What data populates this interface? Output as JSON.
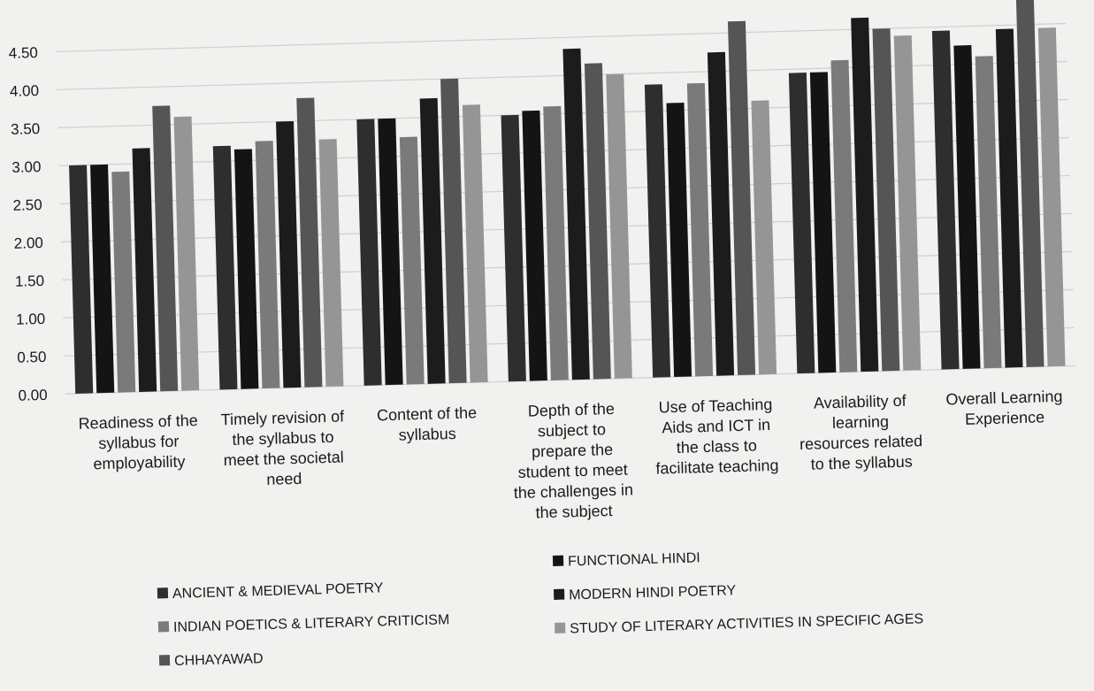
{
  "chart_data": {
    "type": "bar",
    "title": "",
    "xlabel": "",
    "ylabel": "",
    "ylim": [
      0,
      5
    ],
    "yticks": [
      "0.00",
      "0.50",
      "1.00",
      "1.50",
      "2.00",
      "2.50",
      "3.00",
      "3.50",
      "4.00",
      "4.50"
    ],
    "grid": true,
    "legend_position": "bottom",
    "categories": [
      [
        "Readiness of the",
        "syllabus for",
        "employability"
      ],
      [
        "Timely revision of",
        "the syllabus to",
        "meet the societal",
        "need"
      ],
      [
        "Content of the",
        "syllabus"
      ],
      [
        "Depth of the",
        "subject to",
        "prepare the",
        "student to meet",
        "the challenges in",
        "the subject"
      ],
      [
        "Use of Teaching",
        "Aids and ICT in",
        "the class to",
        "facilitate teaching"
      ],
      [
        "Availability of",
        "learning",
        "resources related",
        "to the syllabus"
      ],
      [
        "Overall Learning",
        "Experience"
      ]
    ],
    "series": [
      {
        "name": "ANCIENT & MEDIEVAL POETRY",
        "color": "#2e2e2e",
        "values": [
          3.0,
          3.2,
          3.5,
          3.5,
          3.85,
          3.95,
          4.45
        ]
      },
      {
        "name": "FUNCTIONAL HINDI",
        "color": "#141414",
        "values": [
          3.0,
          3.15,
          3.5,
          3.55,
          3.6,
          3.95,
          4.25
        ]
      },
      {
        "name": "INDIAN POETICS & LITERARY CRITICISM",
        "color": "#7a7a7a",
        "values": [
          2.9,
          3.25,
          3.25,
          3.6,
          3.85,
          4.1,
          4.1
        ]
      },
      {
        "name": "MODERN HINDI POETRY",
        "color": "#1c1c1c",
        "values": [
          3.2,
          3.5,
          3.75,
          4.35,
          4.25,
          4.65,
          4.45
        ]
      },
      {
        "name": "CHHAYAWAD",
        "color": "#555555",
        "values": [
          3.75,
          3.8,
          4.0,
          4.15,
          4.65,
          4.5,
          4.9
        ]
      },
      {
        "name": "STUDY OF LITERARY ACTIVITIES IN SPECIFIC AGES",
        "color": "#959595",
        "values": [
          3.6,
          3.25,
          3.65,
          4.0,
          3.6,
          4.4,
          4.45
        ]
      }
    ]
  }
}
